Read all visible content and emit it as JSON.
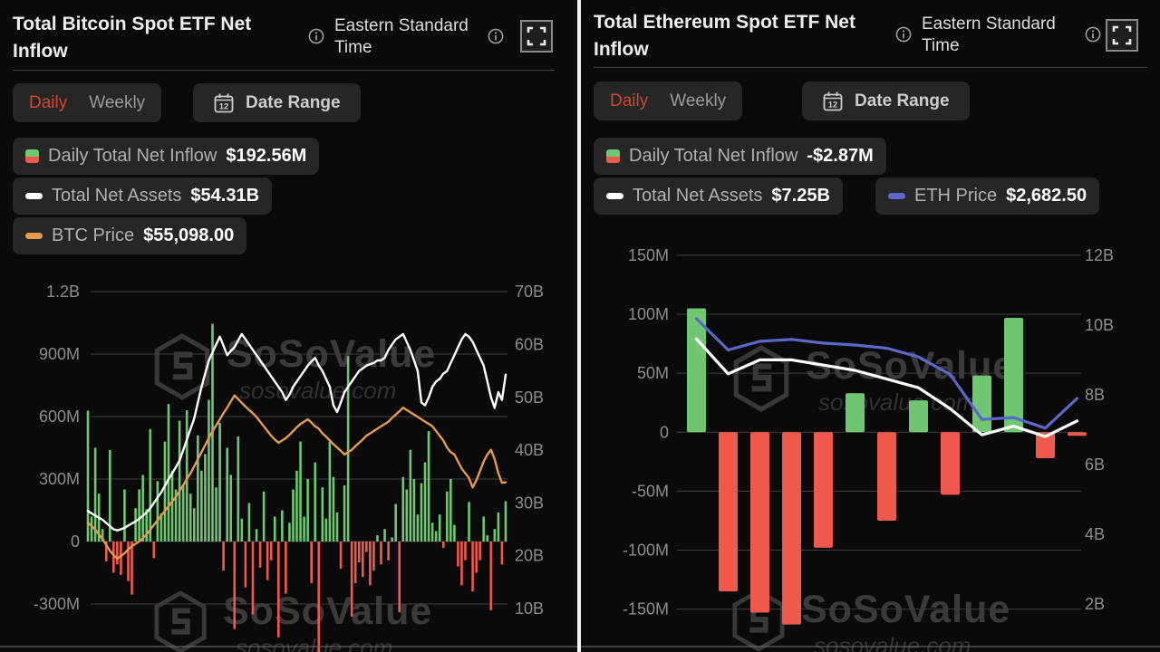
{
  "colors": {
    "green": "#6fc771",
    "red": "#ef5a4b",
    "orange": "#e79a4e",
    "blue": "#5c68c8",
    "white_line": "#ffffff",
    "daily_active": "#cf4733",
    "grid": "#3d3d3d",
    "axis_label": "#8c8c8c"
  },
  "panels": [
    {
      "title": "Total Bitcoin Spot ETF Net Inflow",
      "timezone": "Eastern Standard Time",
      "tabs": {
        "daily": "Daily",
        "weekly": "Weekly"
      },
      "date_range": {
        "label": "Date Range",
        "icon_day": "12"
      },
      "legend": [
        {
          "icon": "bar-split-icon",
          "label": "Daily Total Net Inflow",
          "value": "$192.56M"
        },
        {
          "icon": "line-white-icon",
          "label": "Total Net Assets",
          "value": "$54.31B"
        },
        {
          "icon": "line-orange-icon",
          "label": "BTC Price",
          "value": "$55,098.00"
        }
      ],
      "watermark": {
        "name": "SoSoValue",
        "domain": "sosovalue.com"
      }
    },
    {
      "title": "Total Ethereum Spot ETF Net Inflow",
      "timezone": "Eastern Standard Time",
      "tabs": {
        "daily": "Daily",
        "weekly": "Weekly"
      },
      "date_range": {
        "label": "Date Range",
        "icon_day": "12"
      },
      "legend": [
        {
          "icon": "bar-split-icon",
          "label": "Daily Total Net Inflow",
          "value": "-$2.87M"
        },
        {
          "icon": "line-white-icon",
          "label": "Total Net Assets",
          "value": "$7.25B"
        },
        {
          "icon": "line-blue-icon",
          "label": "ETH Price",
          "value": "$2,682.50"
        }
      ],
      "watermark": {
        "name": "SoSoValue",
        "domain": "sosovalue.com"
      }
    }
  ],
  "chart_data": [
    {
      "type": "bar+line",
      "title": "Total Bitcoin Spot ETF Net Inflow",
      "left_axis": {
        "unit": "USD (M)",
        "ticks": [
          "1.2B",
          "900M",
          "600M",
          "300M",
          "0",
          "-300M"
        ],
        "tick_values": [
          1200,
          900,
          600,
          300,
          0,
          -300
        ],
        "min": -552,
        "max": 1252
      },
      "right_axis": {
        "unit": "USD (B)",
        "ticks": [
          "70B",
          "60B",
          "50B",
          "40B",
          "30B",
          "20B",
          "10B"
        ],
        "tick_values": [
          70,
          60,
          50,
          40,
          30,
          20,
          10
        ],
        "min": 0.9,
        "max": 72.1
      },
      "price_axis": {
        "unit": "USD",
        "min": 18000,
        "max": 98000
      },
      "bar_series": {
        "name": "Daily Total Net Inflow",
        "unit": "M USD",
        "values": [
          628,
          120,
          450,
          230,
          60,
          -95,
          440,
          -150,
          -110,
          -160,
          250,
          -190,
          -255,
          160,
          250,
          320,
          155,
          540,
          -80,
          290,
          135,
          480,
          660,
          340,
          250,
          580,
          270,
          630,
          230,
          160,
          510,
          340,
          420,
          680,
          1045,
          260,
          570,
          -140,
          450,
          320,
          -420,
          505,
          110,
          -220,
          185,
          -350,
          60,
          -125,
          240,
          -185,
          -90,
          120,
          -460,
          150,
          -250,
          90,
          250,
          340,
          480,
          120,
          300,
          -200,
          380,
          -560,
          260,
          110,
          480,
          310,
          140,
          -130,
          270,
          890,
          -360,
          -200,
          -100,
          -170,
          -50,
          -210,
          -140,
          30,
          -110,
          60,
          -90,
          20,
          180,
          -340,
          310,
          250,
          440,
          300,
          130,
          280,
          380,
          530,
          90,
          50,
          130,
          -30,
          240,
          300,
          80,
          -120,
          -210,
          -90,
          190,
          -240,
          -150,
          -90,
          120,
          30,
          -330,
          60,
          140,
          -110,
          193
        ]
      },
      "line_series": [
        {
          "name": "Total Net Assets",
          "unit": "B USD",
          "axis": "right",
          "color": "#ffffff",
          "values": [
            28.5,
            28,
            27.6,
            27.2,
            26.8,
            26.2,
            25.6,
            25,
            24.8,
            25,
            25.3,
            25.7,
            26.1,
            26.5,
            27,
            27.6,
            28.2,
            29,
            30,
            31,
            32,
            33.2,
            34.5,
            35.6,
            36.8,
            38,
            40,
            42,
            44,
            46,
            49,
            52,
            54.5,
            57,
            58.5,
            60,
            61.5,
            59.8,
            58,
            58.8,
            59.5,
            60.8,
            62,
            61,
            60,
            59,
            58,
            57,
            56,
            55,
            54,
            53,
            52,
            51,
            49.5,
            50.5,
            52,
            53,
            54,
            55,
            56,
            56.8,
            57.5,
            56,
            55,
            53.5,
            52,
            48.5,
            47.2,
            49,
            51,
            52,
            53,
            54,
            55,
            55.5,
            56,
            56.3,
            56.5,
            57,
            57,
            57.5,
            59,
            60,
            61,
            61.5,
            62,
            60.5,
            59,
            57,
            55,
            49,
            48.5,
            50,
            52,
            53,
            53.5,
            54.5,
            55,
            56.5,
            58,
            59.5,
            61,
            62,
            61.5,
            60.5,
            59,
            57.5,
            56,
            53,
            50,
            48,
            51,
            49.5,
            54.31
          ]
        },
        {
          "name": "BTC Price",
          "unit": "USD",
          "axis": "price",
          "color": "#e79a4e",
          "values": [
            46500,
            45800,
            45000,
            44000,
            43000,
            41800,
            40500,
            39600,
            38800,
            39400,
            40000,
            40800,
            41500,
            42000,
            42500,
            43200,
            44000,
            45000,
            46000,
            47000,
            48000,
            49000,
            50000,
            51000,
            52000,
            53200,
            54500,
            55800,
            57000,
            58500,
            60000,
            61500,
            63000,
            64500,
            66000,
            67200,
            68500,
            69800,
            71000,
            72300,
            73600,
            72800,
            72000,
            71200,
            70500,
            69800,
            69000,
            68000,
            67000,
            66000,
            65000,
            64200,
            63500,
            64000,
            64500,
            65200,
            66000,
            66800,
            67500,
            68000,
            68500,
            67800,
            67000,
            66500,
            65500,
            64800,
            64000,
            63200,
            62500,
            61800,
            61000,
            61500,
            62000,
            62800,
            63500,
            64200,
            65000,
            65500,
            66000,
            66500,
            67000,
            67500,
            68000,
            68800,
            69500,
            70200,
            71000,
            70500,
            70000,
            69500,
            69000,
            68500,
            68000,
            67500,
            67000,
            66000,
            65000,
            64000,
            62500,
            61500,
            61000,
            59500,
            58000,
            57000,
            56000,
            54000,
            55500,
            57500,
            59500,
            61000,
            62000,
            60000,
            57000,
            55000,
            55098
          ]
        }
      ]
    },
    {
      "type": "bar+line",
      "title": "Total Ethereum Spot ETF Net Inflow",
      "left_axis": {
        "unit": "USD (M)",
        "ticks": [
          "150M",
          "100M",
          "50M",
          "0",
          "-50M",
          "-100M",
          "-150M"
        ],
        "tick_values": [
          150,
          100,
          50,
          0,
          -50,
          -100,
          -150
        ],
        "min": -171,
        "max": 163
      },
      "right_axis": {
        "unit": "USD (B)",
        "ticks": [
          "12B",
          "10B",
          "8B",
          "6B",
          "4B",
          "2B"
        ],
        "tick_values": [
          12,
          10,
          8,
          6,
          4,
          2
        ],
        "min": 1.14,
        "max": 12.44
      },
      "price_axis": {
        "unit": "USD",
        "min": 800,
        "max": 3950
      },
      "bar_series": {
        "name": "Daily Total Net Inflow",
        "unit": "M USD",
        "values": [
          105,
          -135,
          -153,
          -163,
          -98,
          33,
          -75,
          27,
          -53,
          48,
          97,
          -22,
          -3
        ]
      },
      "line_series": [
        {
          "name": "Total Net Assets",
          "unit": "B USD",
          "axis": "right",
          "color": "#ffffff",
          "values": [
            9.6,
            8.6,
            9.0,
            9.0,
            8.85,
            8.7,
            8.45,
            8.2,
            7.6,
            6.85,
            7.1,
            6.8,
            7.25
          ]
        },
        {
          "name": "ETH Price",
          "unit": "USD",
          "axis": "price",
          "color": "#5c68c8",
          "values": [
            3320,
            3070,
            3140,
            3155,
            3125,
            3110,
            3085,
            3015,
            2875,
            2515,
            2530,
            2445,
            2682.5
          ]
        }
      ]
    }
  ]
}
